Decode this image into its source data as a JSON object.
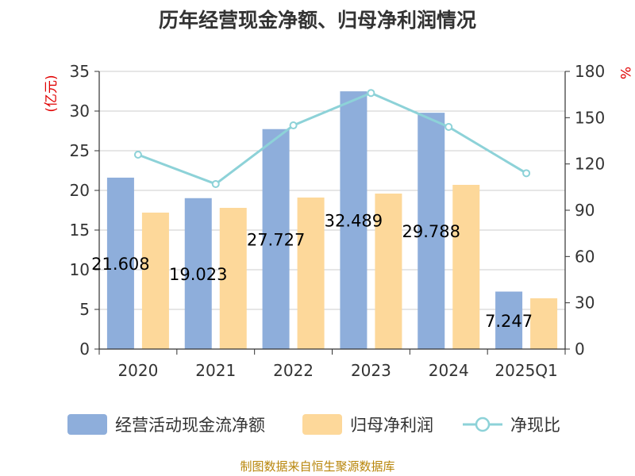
{
  "chart_data": {
    "type": "bar",
    "title": "历年经营现金净额、归母净利润情况",
    "categories": [
      "2020",
      "2021",
      "2022",
      "2023",
      "2024",
      "2025Q1"
    ],
    "y_left": {
      "unit": "(亿元)",
      "min": 0,
      "max": 35,
      "ticks": [
        0,
        5,
        10,
        15,
        20,
        25,
        30,
        35
      ]
    },
    "y_right": {
      "unit": "%",
      "min": 0,
      "max": 180,
      "ticks": [
        0,
        30,
        60,
        90,
        120,
        150,
        180
      ]
    },
    "series": [
      {
        "name": "经营活动现金流净额",
        "type": "bar",
        "axis": "left",
        "color": "#8eaedb",
        "values": [
          21.608,
          19.023,
          27.727,
          32.489,
          29.788,
          7.247
        ],
        "labels": [
          "21.608",
          "19.023",
          "27.727",
          "32.489",
          "29.788",
          "7.247"
        ]
      },
      {
        "name": "归母净利润",
        "type": "bar",
        "axis": "left",
        "color": "#fdd89a",
        "values": [
          17.2,
          17.8,
          19.1,
          19.6,
          20.7,
          6.4
        ]
      },
      {
        "name": "净现比",
        "type": "line",
        "axis": "right",
        "color": "#8dd2d8",
        "values": [
          126,
          107,
          145,
          166,
          144,
          114
        ]
      }
    ],
    "legend_position": "bottom",
    "grid": true
  },
  "source": "制图数据来自恒生聚源数据库"
}
